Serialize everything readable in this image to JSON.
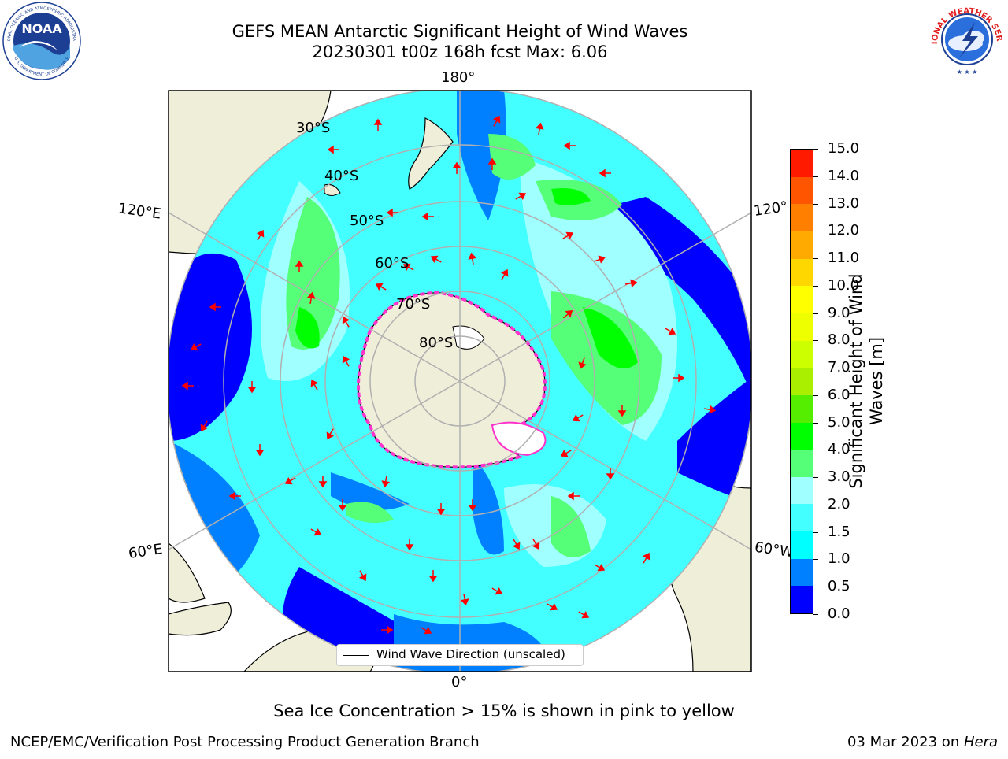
{
  "header": {
    "title_line1": "GEFS MEAN Antarctic Significant Height of Wind Waves",
    "title_line2": "20230301 t00z 168h fcst   Max: 6.06"
  },
  "logos": {
    "noaa_text": "NOAA",
    "noaa_ring_top": "NATIONAL OCEANIC AND ATMOSPHERIC ADMINISTRATION",
    "noaa_ring_bottom": "U.S. DEPARTMENT OF COMMERCE",
    "nws_ring": "NATIONAL WEATHER SERVICE"
  },
  "map": {
    "lon_labels": [
      "180°",
      "120°E",
      "120°",
      "60°E",
      "60°W",
      "0°"
    ],
    "lat_labels": [
      "30°S",
      "40°S",
      "50°S",
      "60°S",
      "70°S",
      "80°S"
    ],
    "legend_label": "Wind Wave Direction (unscaled)",
    "colors": {
      "land": "#efeed9",
      "ice": "#ff33cc",
      "grid": "#b0b0b0",
      "arrow": "#ff0000"
    }
  },
  "colorbar": {
    "label_line1": "Significant Height of Wind",
    "label_line2": "Waves [m]",
    "ticks": [
      "0.0",
      "0.5",
      "1.0",
      "1.5",
      "2.0",
      "3.0",
      "4.0",
      "5.0",
      "6.0",
      "7.0",
      "8.0",
      "9.0",
      "10.0",
      "11.0",
      "12.0",
      "13.0",
      "14.0",
      "15.0"
    ],
    "colors": [
      "#0000ff",
      "#0080ff",
      "#00ffff",
      "#44ffff",
      "#a0ffff",
      "#55ff77",
      "#00ff00",
      "#55ee00",
      "#aaee00",
      "#ccff00",
      "#eeff00",
      "#ffff00",
      "#ffd700",
      "#ffaa00",
      "#ff8000",
      "#ff5500",
      "#ff1a00"
    ]
  },
  "footer": {
    "subtitle": "Sea Ice Concentration > 15% is shown in pink to yellow",
    "left": "NCEP/EMC/Verification Post Processing Product Generation Branch",
    "right_date": "03 Mar 2023 on ",
    "right_host": "Hera"
  }
}
